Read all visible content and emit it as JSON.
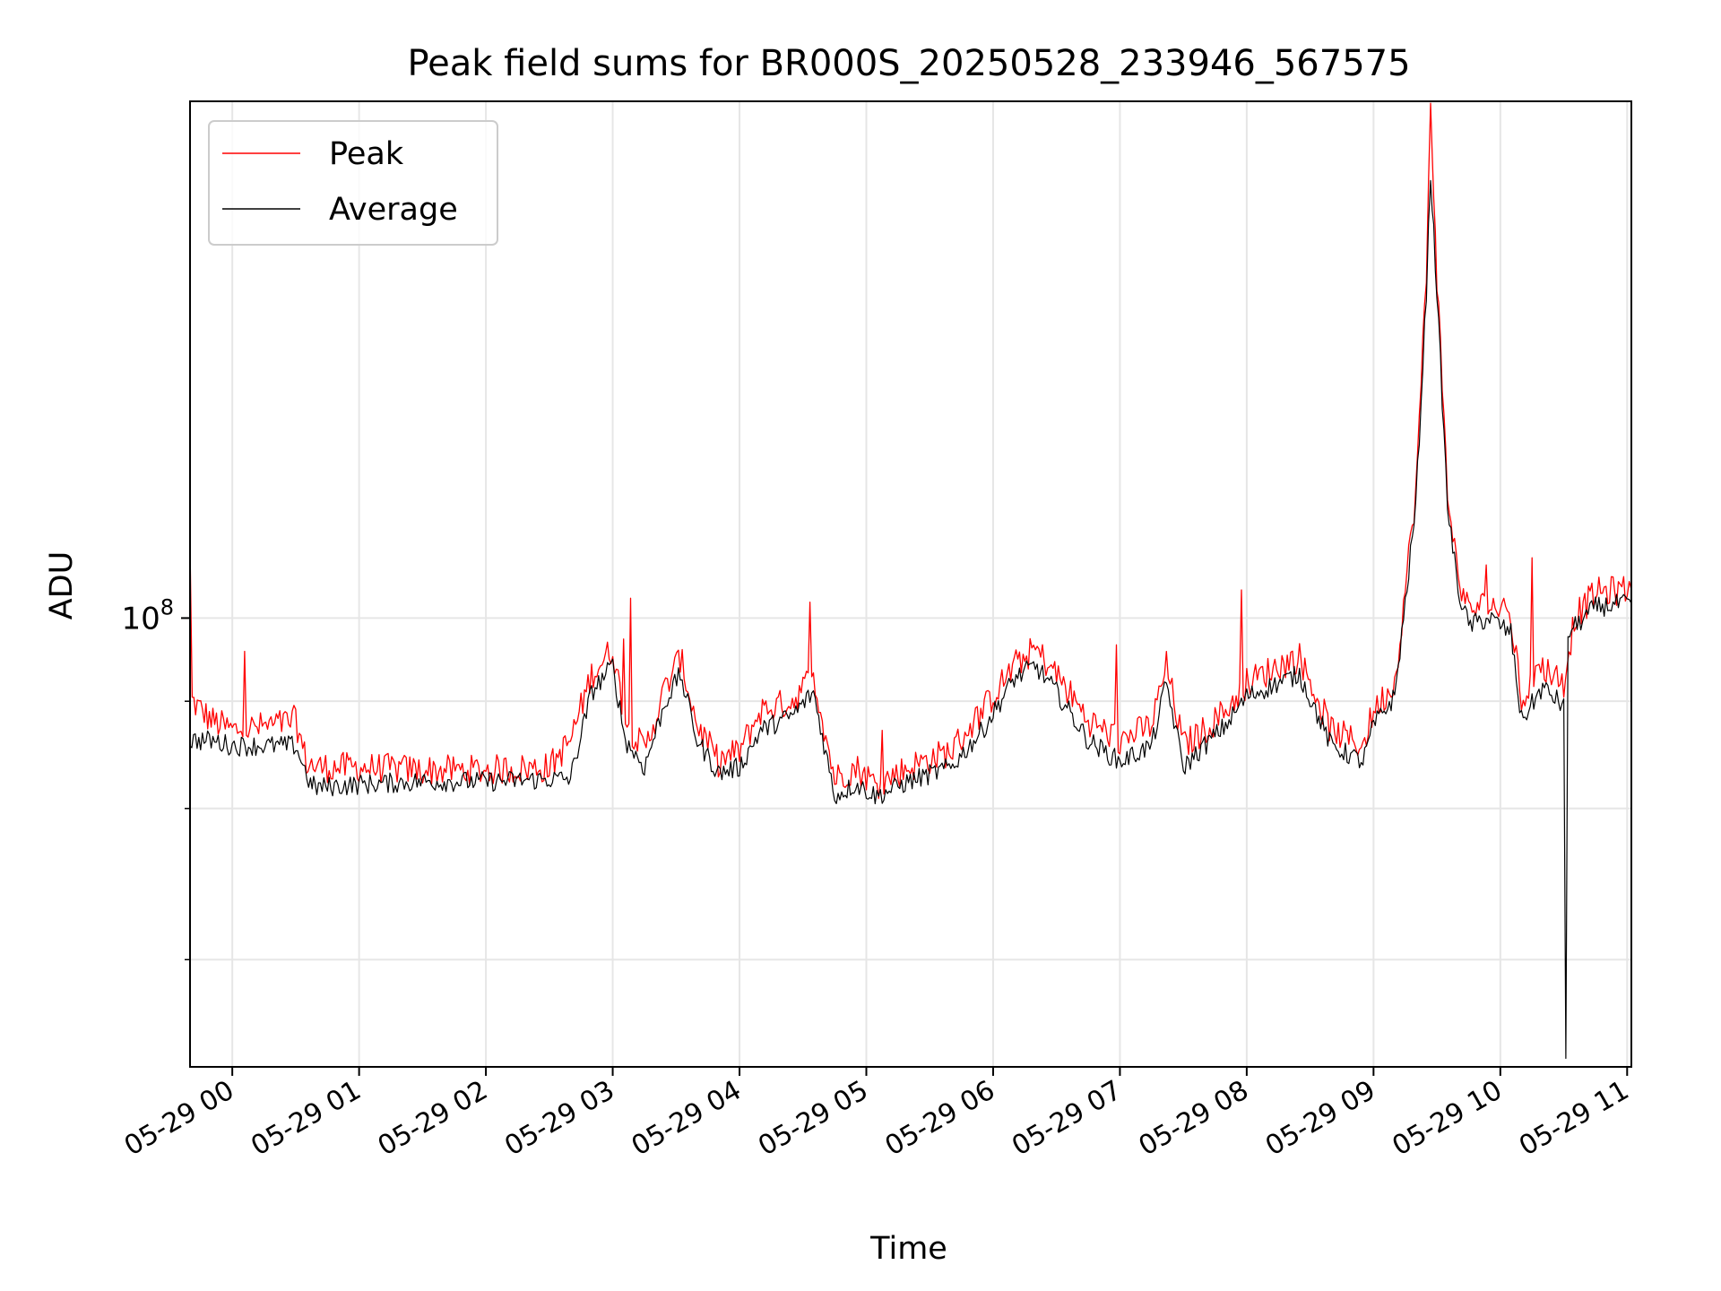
{
  "chart_data": {
    "type": "line",
    "title": "Peak field sums for BR000S_20250528_233946_567575",
    "xlabel": "Time",
    "ylabel": "ADU",
    "yscale": "log",
    "ylim": [
      30000000,
      400000000
    ],
    "xlim": [
      "2025-05-28 23:40",
      "2025-05-29 11:02"
    ],
    "grid": true,
    "legend_position": "top-left",
    "x_ticks": [
      "05-29 00",
      "05-29 01",
      "05-29 02",
      "05-29 03",
      "05-29 04",
      "05-29 05",
      "05-29 06",
      "05-29 07",
      "05-29 08",
      "05-29 09",
      "05-29 10",
      "05-29 11"
    ],
    "y_major_ticks": [
      {
        "value": 100000000,
        "label": "10",
        "exp": "8"
      }
    ],
    "y_minor_ticks": [
      40000000,
      60000000,
      80000000
    ],
    "series": [
      {
        "name": "Peak",
        "color": "#ff0000",
        "points": [
          [
            "2025-05-28 23:40",
            120000000
          ],
          [
            "2025-05-28 23:41",
            80000000
          ],
          [
            "2025-05-28 23:50",
            76000000
          ],
          [
            "2025-05-29 00:00",
            74000000
          ],
          [
            "2025-05-29 00:20",
            75000000
          ],
          [
            "2025-05-29 00:30",
            76000000
          ],
          [
            "2025-05-29 00:35",
            68000000
          ],
          [
            "2025-05-29 00:40",
            67000000
          ],
          [
            "2025-05-29 01:00",
            67000000
          ],
          [
            "2025-05-29 01:30",
            66500000
          ],
          [
            "2025-05-29 02:00",
            66500000
          ],
          [
            "2025-05-29 02:30",
            67000000
          ],
          [
            "2025-05-29 02:40",
            72000000
          ],
          [
            "2025-05-29 02:50",
            86000000
          ],
          [
            "2025-05-29 03:00",
            92000000
          ],
          [
            "2025-05-29 03:06",
            76000000
          ],
          [
            "2025-05-29 03:15",
            70000000
          ],
          [
            "2025-05-29 03:25",
            83000000
          ],
          [
            "2025-05-29 03:32",
            90000000
          ],
          [
            "2025-05-29 03:40",
            75000000
          ],
          [
            "2025-05-29 03:50",
            68000000
          ],
          [
            "2025-05-29 04:00",
            70000000
          ],
          [
            "2025-05-29 04:10",
            78000000
          ],
          [
            "2025-05-29 04:25",
            80000000
          ],
          [
            "2025-05-29 04:35",
            86000000
          ],
          [
            "2025-05-29 04:45",
            65000000
          ],
          [
            "2025-05-29 04:55",
            67000000
          ],
          [
            "2025-05-29 05:05",
            64000000
          ],
          [
            "2025-05-29 05:20",
            67000000
          ],
          [
            "2025-05-29 05:40",
            70000000
          ],
          [
            "2025-05-29 05:55",
            78000000
          ],
          [
            "2025-05-29 06:10",
            88000000
          ],
          [
            "2025-05-29 06:20",
            92000000
          ],
          [
            "2025-05-29 06:30",
            86000000
          ],
          [
            "2025-05-29 06:45",
            76000000
          ],
          [
            "2025-05-29 07:00",
            72000000
          ],
          [
            "2025-05-29 07:15",
            75000000
          ],
          [
            "2025-05-29 07:22",
            88000000
          ],
          [
            "2025-05-29 07:30",
            71000000
          ],
          [
            "2025-05-29 07:40",
            74000000
          ],
          [
            "2025-05-29 07:50",
            78000000
          ],
          [
            "2025-05-29 08:00",
            84000000
          ],
          [
            "2025-05-29 08:15",
            88000000
          ],
          [
            "2025-05-29 08:25",
            90000000
          ],
          [
            "2025-05-29 08:40",
            74000000
          ],
          [
            "2025-05-29 08:55",
            71000000
          ],
          [
            "2025-05-29 09:00",
            78000000
          ],
          [
            "2025-05-29 09:10",
            84000000
          ],
          [
            "2025-05-29 09:15",
            108000000
          ],
          [
            "2025-05-29 09:20",
            140000000
          ],
          [
            "2025-05-29 09:25",
            250000000
          ],
          [
            "2025-05-29 09:27",
            400000000
          ],
          [
            "2025-05-29 09:30",
            250000000
          ],
          [
            "2025-05-29 09:35",
            140000000
          ],
          [
            "2025-05-29 09:40",
            112000000
          ],
          [
            "2025-05-29 09:45",
            102000000
          ],
          [
            "2025-05-29 09:55",
            104000000
          ],
          [
            "2025-05-29 10:05",
            100000000
          ],
          [
            "2025-05-29 10:10",
            80000000
          ],
          [
            "2025-05-29 10:20",
            88000000
          ],
          [
            "2025-05-29 10:30",
            84000000
          ],
          [
            "2025-05-29 10:35",
            100000000
          ],
          [
            "2025-05-29 10:45",
            107000000
          ],
          [
            "2025-05-29 11:00",
            108000000
          ],
          [
            "2025-05-29 11:02",
            108000000
          ]
        ]
      },
      {
        "name": "Average",
        "color": "#000000",
        "points": [
          [
            "2025-05-28 23:40",
            72000000
          ],
          [
            "2025-05-28 23:50",
            72000000
          ],
          [
            "2025-05-29 00:00",
            71000000
          ],
          [
            "2025-05-29 00:30",
            71000000
          ],
          [
            "2025-05-29 00:37",
            64000000
          ],
          [
            "2025-05-29 00:40",
            63500000
          ],
          [
            "2025-05-29 01:00",
            64000000
          ],
          [
            "2025-05-29 01:30",
            64500000
          ],
          [
            "2025-05-29 02:00",
            64500000
          ],
          [
            "2025-05-29 02:40",
            65000000
          ],
          [
            "2025-05-29 02:50",
            82000000
          ],
          [
            "2025-05-29 03:00",
            88000000
          ],
          [
            "2025-05-29 03:06",
            72000000
          ],
          [
            "2025-05-29 03:15",
            67000000
          ],
          [
            "2025-05-29 03:25",
            80000000
          ],
          [
            "2025-05-29 03:32",
            86000000
          ],
          [
            "2025-05-29 03:40",
            72000000
          ],
          [
            "2025-05-29 03:50",
            66000000
          ],
          [
            "2025-05-29 04:00",
            67000000
          ],
          [
            "2025-05-29 04:10",
            74000000
          ],
          [
            "2025-05-29 04:25",
            77000000
          ],
          [
            "2025-05-29 04:35",
            82000000
          ],
          [
            "2025-05-29 04:45",
            62000000
          ],
          [
            "2025-05-29 04:55",
            64000000
          ],
          [
            "2025-05-29 05:05",
            62000000
          ],
          [
            "2025-05-29 05:20",
            64500000
          ],
          [
            "2025-05-29 05:40",
            67000000
          ],
          [
            "2025-05-29 05:55",
            74000000
          ],
          [
            "2025-05-29 06:10",
            85000000
          ],
          [
            "2025-05-29 06:20",
            88000000
          ],
          [
            "2025-05-29 06:30",
            82000000
          ],
          [
            "2025-05-29 06:45",
            72000000
          ],
          [
            "2025-05-29 07:00",
            68000000
          ],
          [
            "2025-05-29 07:15",
            71000000
          ],
          [
            "2025-05-29 07:22",
            84000000
          ],
          [
            "2025-05-29 07:30",
            67000000
          ],
          [
            "2025-05-29 07:40",
            71000000
          ],
          [
            "2025-05-29 07:50",
            75000000
          ],
          [
            "2025-05-29 08:00",
            81000000
          ],
          [
            "2025-05-29 08:15",
            84000000
          ],
          [
            "2025-05-29 08:25",
            86000000
          ],
          [
            "2025-05-29 08:40",
            71000000
          ],
          [
            "2025-05-29 08:55",
            68000000
          ],
          [
            "2025-05-29 09:00",
            75000000
          ],
          [
            "2025-05-29 09:10",
            81000000
          ],
          [
            "2025-05-29 09:15",
            104000000
          ],
          [
            "2025-05-29 09:20",
            135000000
          ],
          [
            "2025-05-29 09:25",
            240000000
          ],
          [
            "2025-05-29 09:27",
            330000000
          ],
          [
            "2025-05-29 09:30",
            240000000
          ],
          [
            "2025-05-29 09:35",
            135000000
          ],
          [
            "2025-05-29 09:40",
            108000000
          ],
          [
            "2025-05-29 09:45",
            98000000
          ],
          [
            "2025-05-29 09:55",
            100000000
          ],
          [
            "2025-05-29 10:05",
            96000000
          ],
          [
            "2025-05-29 10:10",
            76000000
          ],
          [
            "2025-05-29 10:20",
            83000000
          ],
          [
            "2025-05-29 10:30",
            79000000
          ],
          [
            "2025-05-29 10:31",
            30000000
          ],
          [
            "2025-05-29 10:32",
            96000000
          ],
          [
            "2025-05-29 10:45",
            103000000
          ],
          [
            "2025-05-29 11:00",
            104000000
          ],
          [
            "2025-05-29 11:02",
            104000000
          ]
        ]
      }
    ]
  }
}
